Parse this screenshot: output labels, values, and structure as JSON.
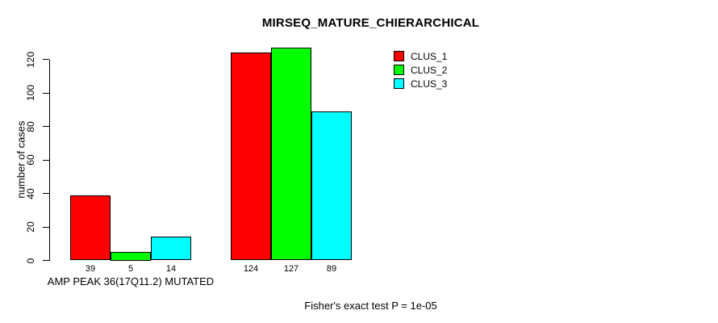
{
  "chart_data": {
    "type": "bar",
    "title": "MIRSEQ_MATURE_CHIERARCHICAL",
    "ylabel": "number of cases",
    "xlabel": "AMP PEAK 36(17Q11.2) MUTATED",
    "categories": [
      "AMP PEAK 36(17Q11.2) MUTATED",
      ""
    ],
    "series": [
      {
        "name": "CLUS_1",
        "color": "#ff0000",
        "values": [
          39,
          124
        ]
      },
      {
        "name": "CLUS_2",
        "color": "#00ff00",
        "values": [
          5,
          127
        ]
      },
      {
        "name": "CLUS_3",
        "color": "#00ffff",
        "values": [
          14,
          89
        ]
      }
    ],
    "yticks": [
      0,
      20,
      40,
      60,
      80,
      100,
      120
    ],
    "ylim": [
      0,
      127
    ],
    "grid": "off",
    "bar_value_labels": [
      [
        39,
        5,
        14
      ],
      [
        124,
        127,
        89
      ]
    ],
    "legend_position": "top-right-of-plot",
    "annotation": "Fisher's exact test P = 1e-05"
  },
  "colors": {
    "background": "#ffffff",
    "axis": "#000000",
    "text": "#000000",
    "clus_1": "#ff0000",
    "clus_2": "#00ff00",
    "clus_3": "#00ffff"
  }
}
